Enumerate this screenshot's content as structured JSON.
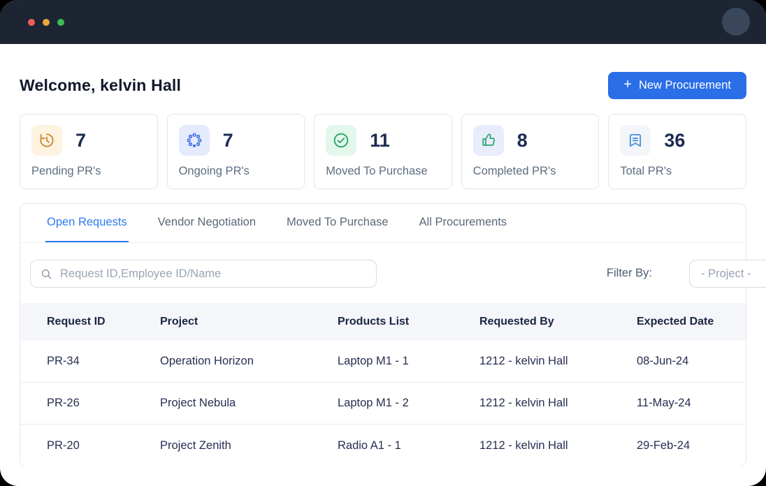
{
  "window": {
    "traffic_lights": {
      "close": "#f25f5a",
      "minimize": "#eca93b",
      "maximize": "#3dbb51"
    }
  },
  "header": {
    "welcome": "Welcome, kelvin Hall",
    "new_procurement_label": "New Procurement",
    "plus_glyph": "+",
    "button_color": "#2a6ee8"
  },
  "stats": [
    {
      "value": "7",
      "label": "Pending PR's",
      "icon": "history-clock-icon",
      "icon_color": "#c8892d",
      "icon_bg": "#fdf3e0"
    },
    {
      "value": "7",
      "label": "Ongoing PR's",
      "icon": "spinner-dots-icon",
      "icon_color": "#3365e5",
      "icon_bg": "#e4ebfc"
    },
    {
      "value": "11",
      "label": "Moved To Purchase",
      "icon": "check-circle-icon",
      "icon_color": "#23a566",
      "icon_bg": "#e3f7ec"
    },
    {
      "value": "8",
      "label": "Completed PR's",
      "icon": "thumbs-up-icon",
      "icon_color": "#28a76a",
      "icon_bg": "#e8ecfb"
    },
    {
      "value": "36",
      "label": "Total PR's",
      "icon": "bookmark-file-icon",
      "icon_color": "#4a8fd8",
      "icon_bg": "#f2f5f9"
    }
  ],
  "tabs": [
    {
      "label": "Open Requests",
      "active": true
    },
    {
      "label": "Vendor Negotiation",
      "active": false
    },
    {
      "label": "Moved To Purchase",
      "active": false
    },
    {
      "label": "All Procurements",
      "active": false
    }
  ],
  "filters": {
    "search_placeholder": "Request ID,Employee ID/Name",
    "filter_by_label": "Filter By:",
    "project_filter_value": "- Project -"
  },
  "table": {
    "columns": [
      "Request ID",
      "Project",
      "Products List",
      "Requested By",
      "Expected Date"
    ],
    "rows": [
      [
        "PR-34",
        "Operation Horizon",
        "Laptop M1 - 1",
        "1212 - kelvin Hall",
        "08-Jun-24"
      ],
      [
        "PR-26",
        "Project Nebula",
        "Laptop M1 - 2",
        "1212 - kelvin Hall",
        "11-May-24"
      ],
      [
        "PR-20",
        "Project Zenith",
        "Radio A1 - 1",
        "1212 - kelvin Hall",
        "29-Feb-24"
      ]
    ]
  }
}
